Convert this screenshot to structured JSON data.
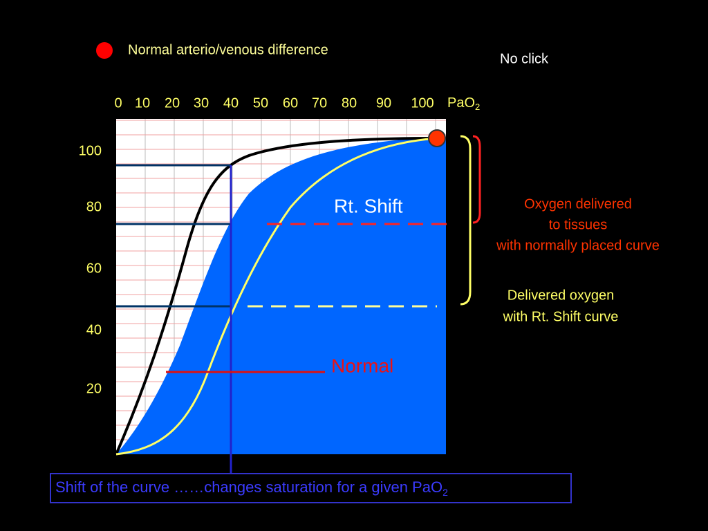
{
  "legend": {
    "label": "Normal arterio/venous difference"
  },
  "no_click": "No click",
  "x_axis": {
    "labels": [
      "0",
      "10",
      "20",
      "30",
      "40",
      "50",
      "60",
      "70",
      "80",
      "90",
      "100"
    ],
    "unit": "PaO",
    "unit_subscript": "2"
  },
  "y_axis": {
    "labels": [
      "100",
      "80",
      "60",
      "40",
      "20"
    ]
  },
  "curve_labels": {
    "right_shift": "Rt. Shift",
    "normal": "Normal"
  },
  "annotations": {
    "normal_delivery": [
      "Oxygen delivered",
      "to tissues",
      "with normally placed curve"
    ],
    "shift_delivery": [
      "Delivered oxygen",
      "with Rt. Shift curve"
    ]
  },
  "caption": {
    "text": "Shift of the curve ……changes  saturation for a given PaO",
    "subscript": "2"
  }
}
